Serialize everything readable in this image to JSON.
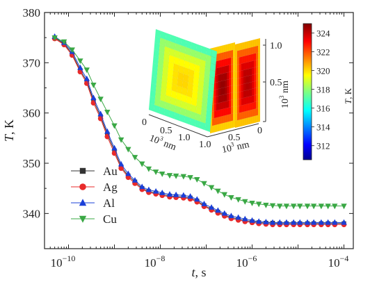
{
  "chart_data": {
    "type": "line",
    "x_scale": "log",
    "xlim": [
      3e-11,
      0.00016
    ],
    "ylim": [
      333,
      380
    ],
    "xlabel_var": "t",
    "xlabel_unit": ", s",
    "ylabel_var": "T",
    "ylabel_unit": ", K",
    "x_tick_bases": [
      "10",
      "10",
      "10",
      "10"
    ],
    "x_tick_exps": [
      "−10",
      "−8",
      "−6",
      "−4"
    ],
    "x_tick_values": [
      1e-10,
      1e-08,
      1e-06,
      0.0001
    ],
    "y_ticks": [
      "340",
      "350",
      "360",
      "370",
      "380"
    ],
    "y_tick_values": [
      340,
      350,
      360,
      370,
      380
    ],
    "x": [
      5e-11,
      8e-11,
      1.2e-10,
      1.8e-10,
      2.5e-10,
      3.5e-10,
      5e-10,
      7e-10,
      1e-09,
      1.4e-09,
      2e-09,
      2.8e-09,
      4e-09,
      5.6e-09,
      8e-09,
      1.1e-08,
      1.6e-08,
      2.2e-08,
      3.2e-08,
      4.5e-08,
      6.3e-08,
      9e-08,
      1.3e-07,
      1.8e-07,
      2.5e-07,
      3.5e-07,
      5e-07,
      7e-07,
      1e-06,
      1.4e-06,
      2e-06,
      2.8e-06,
      4e-06,
      5.6e-06,
      8e-06,
      1.1e-05,
      1.6e-05,
      2.2e-05,
      3.2e-05,
      4.5e-05,
      6.3e-05,
      0.0001
    ],
    "series": [
      {
        "name": "Au",
        "color": "#333333",
        "marker": "square",
        "values": [
          375,
          373.8,
          371.8,
          368.5,
          366.3,
          362.5,
          359.3,
          355.8,
          352.5,
          349.3,
          347.5,
          346.3,
          345,
          344.4,
          344.1,
          343.8,
          343.5,
          343.4,
          343.3,
          343.1,
          342.5,
          341.6,
          340.9,
          340.3,
          339.7,
          339.2,
          338.9,
          338.6,
          338.4,
          338.2,
          338.1,
          338.1,
          338,
          338,
          338,
          338,
          338,
          338,
          338,
          338,
          338,
          338
        ]
      },
      {
        "name": "Ag",
        "color": "#e82a2a",
        "marker": "circle",
        "values": [
          374.8,
          373.6,
          371.5,
          368.2,
          365.9,
          362,
          358.9,
          355.3,
          352,
          349,
          347.2,
          346,
          344.8,
          344.2,
          343.9,
          343.6,
          343.3,
          343.2,
          343.1,
          342.9,
          342.3,
          341.4,
          340.7,
          340.1,
          339.5,
          339,
          338.7,
          338.4,
          338.2,
          338,
          337.9,
          337.8,
          337.8,
          337.8,
          337.8,
          337.8,
          337.8,
          337.8,
          337.8,
          337.8,
          337.8,
          337.8
        ]
      },
      {
        "name": "Al",
        "color": "#1a3fd8",
        "marker": "triangle-up",
        "values": [
          375.2,
          374,
          372.2,
          369,
          366.8,
          363,
          359.8,
          356.3,
          353,
          349.8,
          347.9,
          346.6,
          345.3,
          344.7,
          344.4,
          344.1,
          343.8,
          343.7,
          343.6,
          343.4,
          342.8,
          341.9,
          341.2,
          340.6,
          340,
          339.5,
          339.2,
          338.9,
          338.6,
          338.4,
          338.3,
          338.2,
          338.2,
          338.2,
          338.2,
          338.2,
          338.2,
          338.2,
          338.2,
          338.2,
          338.2,
          338.2
        ]
      },
      {
        "name": "Cu",
        "color": "#3aa845",
        "marker": "triangle-down",
        "values": [
          375,
          374.2,
          372.6,
          370.4,
          368.6,
          365.6,
          362.8,
          360.2,
          357.5,
          354.7,
          352.8,
          351.2,
          349.9,
          348.9,
          348.3,
          347.9,
          347.6,
          347.5,
          347.4,
          347.2,
          346.8,
          346,
          345.2,
          344.5,
          343.8,
          343.2,
          342.8,
          342.4,
          342.1,
          341.9,
          341.7,
          341.6,
          341.5,
          341.5,
          341.5,
          341.5,
          341.5,
          341.5,
          341.5,
          341.5,
          341.5,
          341.5
        ]
      }
    ],
    "legend_position": "lower-left",
    "grid": false,
    "inset": {
      "description_type": "3d-heatmap-panels",
      "panels": 3,
      "axis_ticks_left": [
        "0",
        "0.5",
        "1.0"
      ],
      "axis_ticks_right": [
        "1.0",
        "0.5",
        "0"
      ],
      "axis_ticks_vertical": [
        "0.5",
        "1.0"
      ],
      "axis_unit_base": "10",
      "axis_unit_exp": "3",
      "axis_unit_text": " nm",
      "colorbar": {
        "title_var": "T",
        "title_unit": ", K",
        "ticks": [
          "324",
          "322",
          "320",
          "318",
          "316",
          "314",
          "312"
        ],
        "tick_values": [
          324,
          322,
          320,
          318,
          316,
          314,
          312
        ],
        "range": [
          310.5,
          325
        ]
      }
    }
  }
}
